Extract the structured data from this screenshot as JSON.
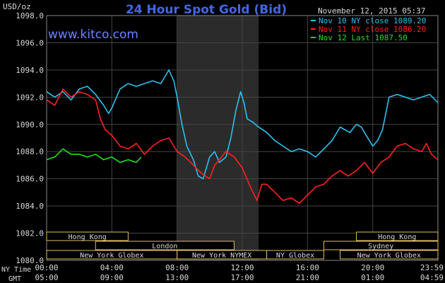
{
  "title": "24 Hour Spot Gold (Bid)",
  "unit_label": "USD/oz",
  "timestamp": "November 12, 2015 05:37",
  "watermark": "www.kitco.com",
  "colors": {
    "title": "#4169e1",
    "watermark": "#6a84ff",
    "grid": "#444444",
    "axis_text": "#d8d8d8",
    "session_box": "#e0c060",
    "night_shade": "#2b2b2b"
  },
  "legend": [
    {
      "label": "Nov 10 NY close 1089.20",
      "color": "#2ec0f0"
    },
    {
      "label": "Nov 11 NY close 1086.20",
      "color": "#ff2020"
    },
    {
      "label": "Nov 12 Last 1087.50",
      "color": "#20e020"
    }
  ],
  "axis_row_labels": {
    "ny": "NY Time",
    "gmt": "GMT"
  },
  "sessions": [
    {
      "label": "Hong Kong",
      "start": 0.0,
      "end": 5.0
    },
    {
      "label": "London",
      "start": 3.0,
      "end": 11.5
    },
    {
      "label": "New York Globex",
      "start": 0.0,
      "end": 8.0
    },
    {
      "label": "New York NYMEX",
      "start": 8.0,
      "end": 13.5
    },
    {
      "label": "NY Globex",
      "start": 13.5,
      "end": 17.0
    },
    {
      "label": "Sydney",
      "start": 17.0,
      "end": 24.0
    },
    {
      "label": "Hong Kong",
      "start": 19.0,
      "end": 24.0
    },
    {
      "label": "New York Globex",
      "start": 18.0,
      "end": 24.0
    }
  ],
  "chart_data": {
    "type": "line",
    "title": "24 Hour Spot Gold (Bid)",
    "ylabel": "USD/oz",
    "ylim": [
      1080,
      1098
    ],
    "yticks": [
      1080.0,
      1082.0,
      1084.0,
      1086.0,
      1088.0,
      1090.0,
      1092.0,
      1094.0,
      1096.0,
      1098.0
    ],
    "ytick_labels": [
      "1080.0",
      "1082.0",
      "1084.0",
      "1086.0",
      "1088.0",
      "1090.0",
      "1092.0",
      "1094.0",
      "1096.0",
      "1098.0"
    ],
    "xlim": [
      0,
      24
    ],
    "xticks": [
      0,
      4,
      8,
      12,
      16,
      20,
      24
    ],
    "xtick_labels_ny": [
      "00:00",
      "04:00",
      "08:00",
      "12:00",
      "16:00",
      "20:00",
      "23:59"
    ],
    "xtick_labels_gmt": [
      "05:00",
      "09:00",
      "13:00",
      "17:00",
      "21:00",
      "01:00",
      "04:59"
    ],
    "shaded_interval_hours": [
      8.0,
      13.0
    ],
    "grid": true,
    "legend_position": "top-right",
    "series": [
      {
        "name": "Nov 10 NY close 1089.20",
        "color": "#2ec0f0",
        "x": [
          0,
          0.5,
          1.0,
          1.5,
          2.0,
          2.5,
          3.0,
          3.5,
          3.8,
          4.0,
          4.5,
          5.0,
          5.5,
          6.0,
          6.5,
          7.0,
          7.5,
          7.8,
          8.0,
          8.3,
          8.6,
          9.0,
          9.3,
          9.6,
          10.0,
          10.3,
          10.6,
          11.0,
          11.3,
          11.6,
          11.9,
          12.1,
          12.3,
          12.6,
          13.0,
          13.5,
          14.0,
          14.5,
          15.0,
          15.5,
          16.0,
          16.5,
          17.0,
          17.5,
          18.0,
          18.3,
          18.6,
          19.0,
          19.3,
          19.6,
          20.0,
          20.3,
          20.6,
          21.0,
          21.5,
          22.0,
          22.5,
          23.0,
          23.5,
          23.99
        ],
        "y": [
          1092.4,
          1092.0,
          1092.4,
          1091.8,
          1092.6,
          1092.8,
          1092.2,
          1091.4,
          1090.8,
          1091.2,
          1092.6,
          1093.0,
          1092.8,
          1093.0,
          1093.2,
          1093.0,
          1094.0,
          1093.2,
          1092.0,
          1090.0,
          1088.4,
          1087.4,
          1086.2,
          1086.0,
          1087.6,
          1088.0,
          1087.2,
          1087.6,
          1089.0,
          1091.0,
          1092.4,
          1091.6,
          1090.4,
          1090.2,
          1089.8,
          1089.4,
          1088.8,
          1088.4,
          1088.0,
          1088.2,
          1088.0,
          1087.6,
          1088.2,
          1088.8,
          1089.8,
          1089.6,
          1089.4,
          1090.0,
          1089.8,
          1089.2,
          1088.4,
          1088.8,
          1089.6,
          1092.0,
          1092.2,
          1092.0,
          1091.8,
          1092.0,
          1092.2,
          1091.6
        ]
      },
      {
        "name": "Nov 11 NY close 1086.20",
        "color": "#ff2020",
        "x": [
          0,
          0.5,
          1.0,
          1.5,
          2.0,
          2.5,
          3.0,
          3.3,
          3.6,
          4.0,
          4.5,
          5.0,
          5.5,
          6.0,
          6.5,
          7.0,
          7.5,
          8.0,
          8.5,
          9.0,
          9.5,
          10.0,
          10.3,
          10.6,
          11.0,
          11.5,
          12.0,
          12.5,
          12.9,
          13.2,
          13.5,
          14.0,
          14.5,
          15.0,
          15.5,
          16.0,
          16.5,
          17.0,
          17.5,
          18.0,
          18.5,
          19.0,
          19.5,
          20.0,
          20.5,
          21.0,
          21.5,
          22.0,
          22.5,
          23.0,
          23.3,
          23.6,
          23.99
        ],
        "y": [
          1091.8,
          1091.4,
          1092.6,
          1092.0,
          1092.4,
          1092.2,
          1091.8,
          1090.4,
          1089.6,
          1089.2,
          1088.4,
          1088.2,
          1088.6,
          1087.8,
          1088.4,
          1088.8,
          1089.0,
          1088.0,
          1087.6,
          1087.0,
          1086.4,
          1086.0,
          1087.0,
          1087.4,
          1088.0,
          1087.6,
          1086.8,
          1085.4,
          1084.4,
          1085.6,
          1085.6,
          1085.0,
          1084.4,
          1084.6,
          1084.2,
          1084.8,
          1085.4,
          1085.6,
          1086.2,
          1086.6,
          1086.2,
          1086.6,
          1087.2,
          1086.4,
          1087.2,
          1087.6,
          1088.4,
          1088.6,
          1088.2,
          1088.0,
          1088.6,
          1087.8,
          1087.4
        ]
      },
      {
        "name": "Nov 12 Last 1087.50",
        "color": "#20e020",
        "x": [
          0,
          0.5,
          1.0,
          1.5,
          2.0,
          2.5,
          3.0,
          3.5,
          4.0,
          4.5,
          5.0,
          5.5,
          5.8
        ],
        "y": [
          1087.4,
          1087.6,
          1088.2,
          1087.8,
          1087.8,
          1087.6,
          1087.8,
          1087.4,
          1087.6,
          1087.2,
          1087.4,
          1087.2,
          1087.6
        ]
      }
    ]
  }
}
